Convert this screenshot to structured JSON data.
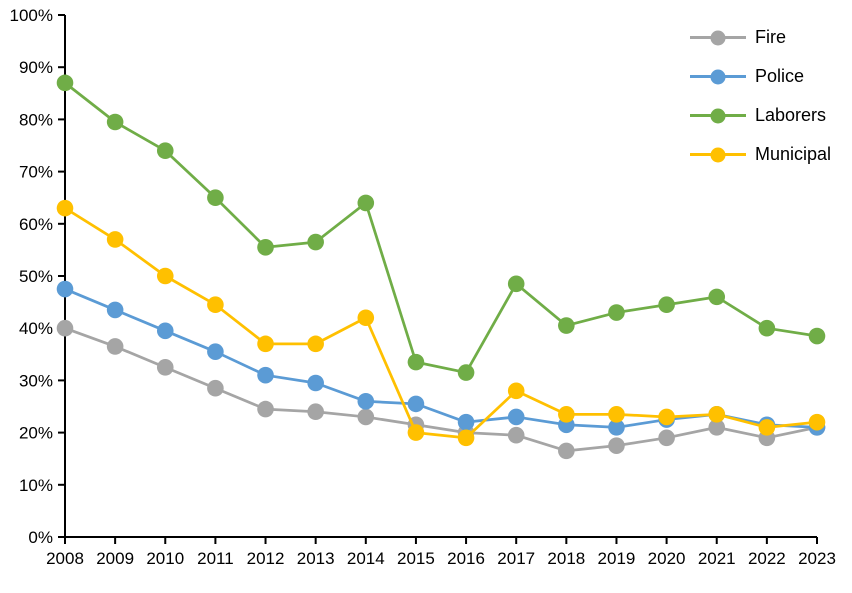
{
  "chart_data": {
    "type": "line",
    "title": "",
    "xlabel": "",
    "ylabel": "",
    "grid": false,
    "legend_position": "top-right",
    "x_categories": [
      "2008",
      "2009",
      "2010",
      "2011",
      "2012",
      "2013",
      "2014",
      "2015",
      "2016",
      "2017",
      "2018",
      "2019",
      "2020",
      "2021",
      "2022",
      "2023"
    ],
    "y_axis": {
      "min": 0,
      "max": 100,
      "step": 10,
      "unit": "percent",
      "tick_labels": [
        "0%",
        "10%",
        "20%",
        "30%",
        "40%",
        "50%",
        "60%",
        "70%",
        "80%",
        "90%",
        "100%"
      ]
    },
    "series": [
      {
        "name": "Fire",
        "color": "#A5A5A5",
        "values": [
          40,
          36.5,
          32.5,
          28.5,
          24.5,
          24,
          23,
          21.5,
          20,
          19.5,
          16.5,
          17.5,
          19,
          21,
          19,
          21
        ]
      },
      {
        "name": "Police",
        "color": "#5B9BD5",
        "values": [
          47.5,
          43.5,
          39.5,
          35.5,
          31,
          29.5,
          26,
          25.5,
          22,
          23,
          21.5,
          21,
          22.5,
          23.5,
          21.5,
          21
        ]
      },
      {
        "name": "Laborers",
        "color": "#70AD47",
        "values": [
          87,
          79.5,
          74,
          65,
          55.5,
          56.5,
          64,
          33.5,
          31.5,
          48.5,
          40.5,
          43,
          44.5,
          46,
          40,
          38.5
        ]
      },
      {
        "name": "Municipal",
        "color": "#FFC000",
        "values": [
          63,
          57,
          50,
          44.5,
          37,
          37,
          42,
          20,
          19,
          28,
          23.5,
          23.5,
          23,
          23.5,
          21,
          22
        ]
      }
    ]
  },
  "colors": {
    "axis": "#000000",
    "text": "#000000",
    "background": "#FFFFFF"
  }
}
